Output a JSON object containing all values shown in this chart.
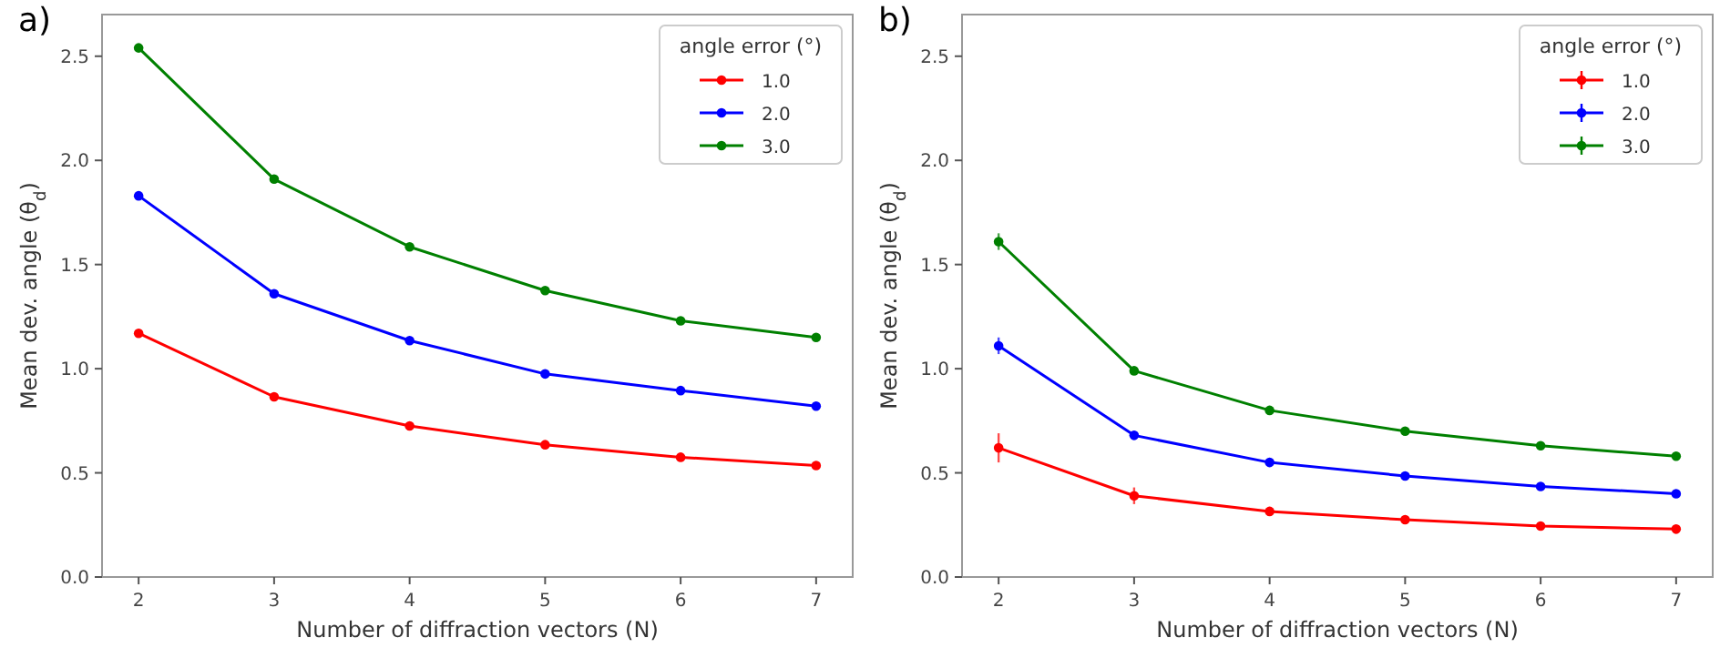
{
  "chart_data": [
    {
      "type": "line",
      "annotations": [
        "a)"
      ],
      "xlabel": "Number of diffraction vectors (N)",
      "ylabel": "Mean dev. angle (θ$_{d}$)",
      "legend_title": "angle error (°)",
      "x": [
        2,
        3,
        4,
        5,
        6,
        7
      ],
      "xlim": [
        1.73,
        7.27
      ],
      "ylim": [
        0,
        2.7
      ],
      "xticks": [
        2,
        3,
        4,
        5,
        6,
        7
      ],
      "yticks": [
        {
          "value": 0,
          "label": "0.0"
        },
        {
          "value": 0.5,
          "label": "0.5"
        },
        {
          "value": 1,
          "label": "1.0"
        },
        {
          "value": 1.5,
          "label": "1.5"
        },
        {
          "value": 2,
          "label": "2.0"
        },
        {
          "value": 2.5,
          "label": "2.5"
        }
      ],
      "legend": "top right",
      "marker": "circle",
      "grid": false,
      "series": [
        {
          "name": "1.0",
          "color": "#ff0000",
          "values": [
            1.17,
            0.865,
            0.725,
            0.635,
            0.575,
            0.535
          ]
        },
        {
          "name": "2.0",
          "color": "#0000ff",
          "values": [
            1.83,
            1.36,
            1.135,
            0.975,
            0.895,
            0.82
          ]
        },
        {
          "name": "3.0",
          "color": "#008000",
          "values": [
            2.54,
            1.91,
            1.585,
            1.375,
            1.23,
            1.15
          ]
        }
      ]
    },
    {
      "type": "line",
      "annotations": [
        "b)"
      ],
      "xlabel": "Number of diffraction vectors (N)",
      "ylabel": "Mean dev. angle (θ$_{d}$)",
      "legend_title": "angle error (°)",
      "x": [
        2,
        3,
        4,
        5,
        6,
        7
      ],
      "xlim": [
        1.73,
        7.27
      ],
      "ylim": [
        0,
        2.7
      ],
      "xticks": [
        2,
        3,
        4,
        5,
        6,
        7
      ],
      "yticks": [
        {
          "value": 0,
          "label": "0.0"
        },
        {
          "value": 0.5,
          "label": "0.5"
        },
        {
          "value": 1,
          "label": "1.0"
        },
        {
          "value": 1.5,
          "label": "1.5"
        },
        {
          "value": 2,
          "label": "2.0"
        },
        {
          "value": 2.5,
          "label": "2.5"
        }
      ],
      "legend": "top right",
      "marker": "circle",
      "grid": false,
      "series": [
        {
          "name": "1.0",
          "color": "#ff0000",
          "values": [
            0.62,
            0.39,
            0.315,
            0.275,
            0.245,
            0.23
          ],
          "errors": [
            0.07,
            0.04,
            0.02,
            0.02,
            0.015,
            0.01
          ]
        },
        {
          "name": "2.0",
          "color": "#0000ff",
          "values": [
            1.11,
            0.68,
            0.55,
            0.485,
            0.435,
            0.4
          ],
          "errors": [
            0.04,
            0.02,
            0.015,
            0.01,
            0.01,
            0.01
          ]
        },
        {
          "name": "3.0",
          "color": "#008000",
          "values": [
            1.61,
            0.99,
            0.8,
            0.7,
            0.63,
            0.58
          ],
          "errors": [
            0.04,
            0.02,
            0.015,
            0.01,
            0.01,
            0.01
          ]
        }
      ]
    }
  ]
}
